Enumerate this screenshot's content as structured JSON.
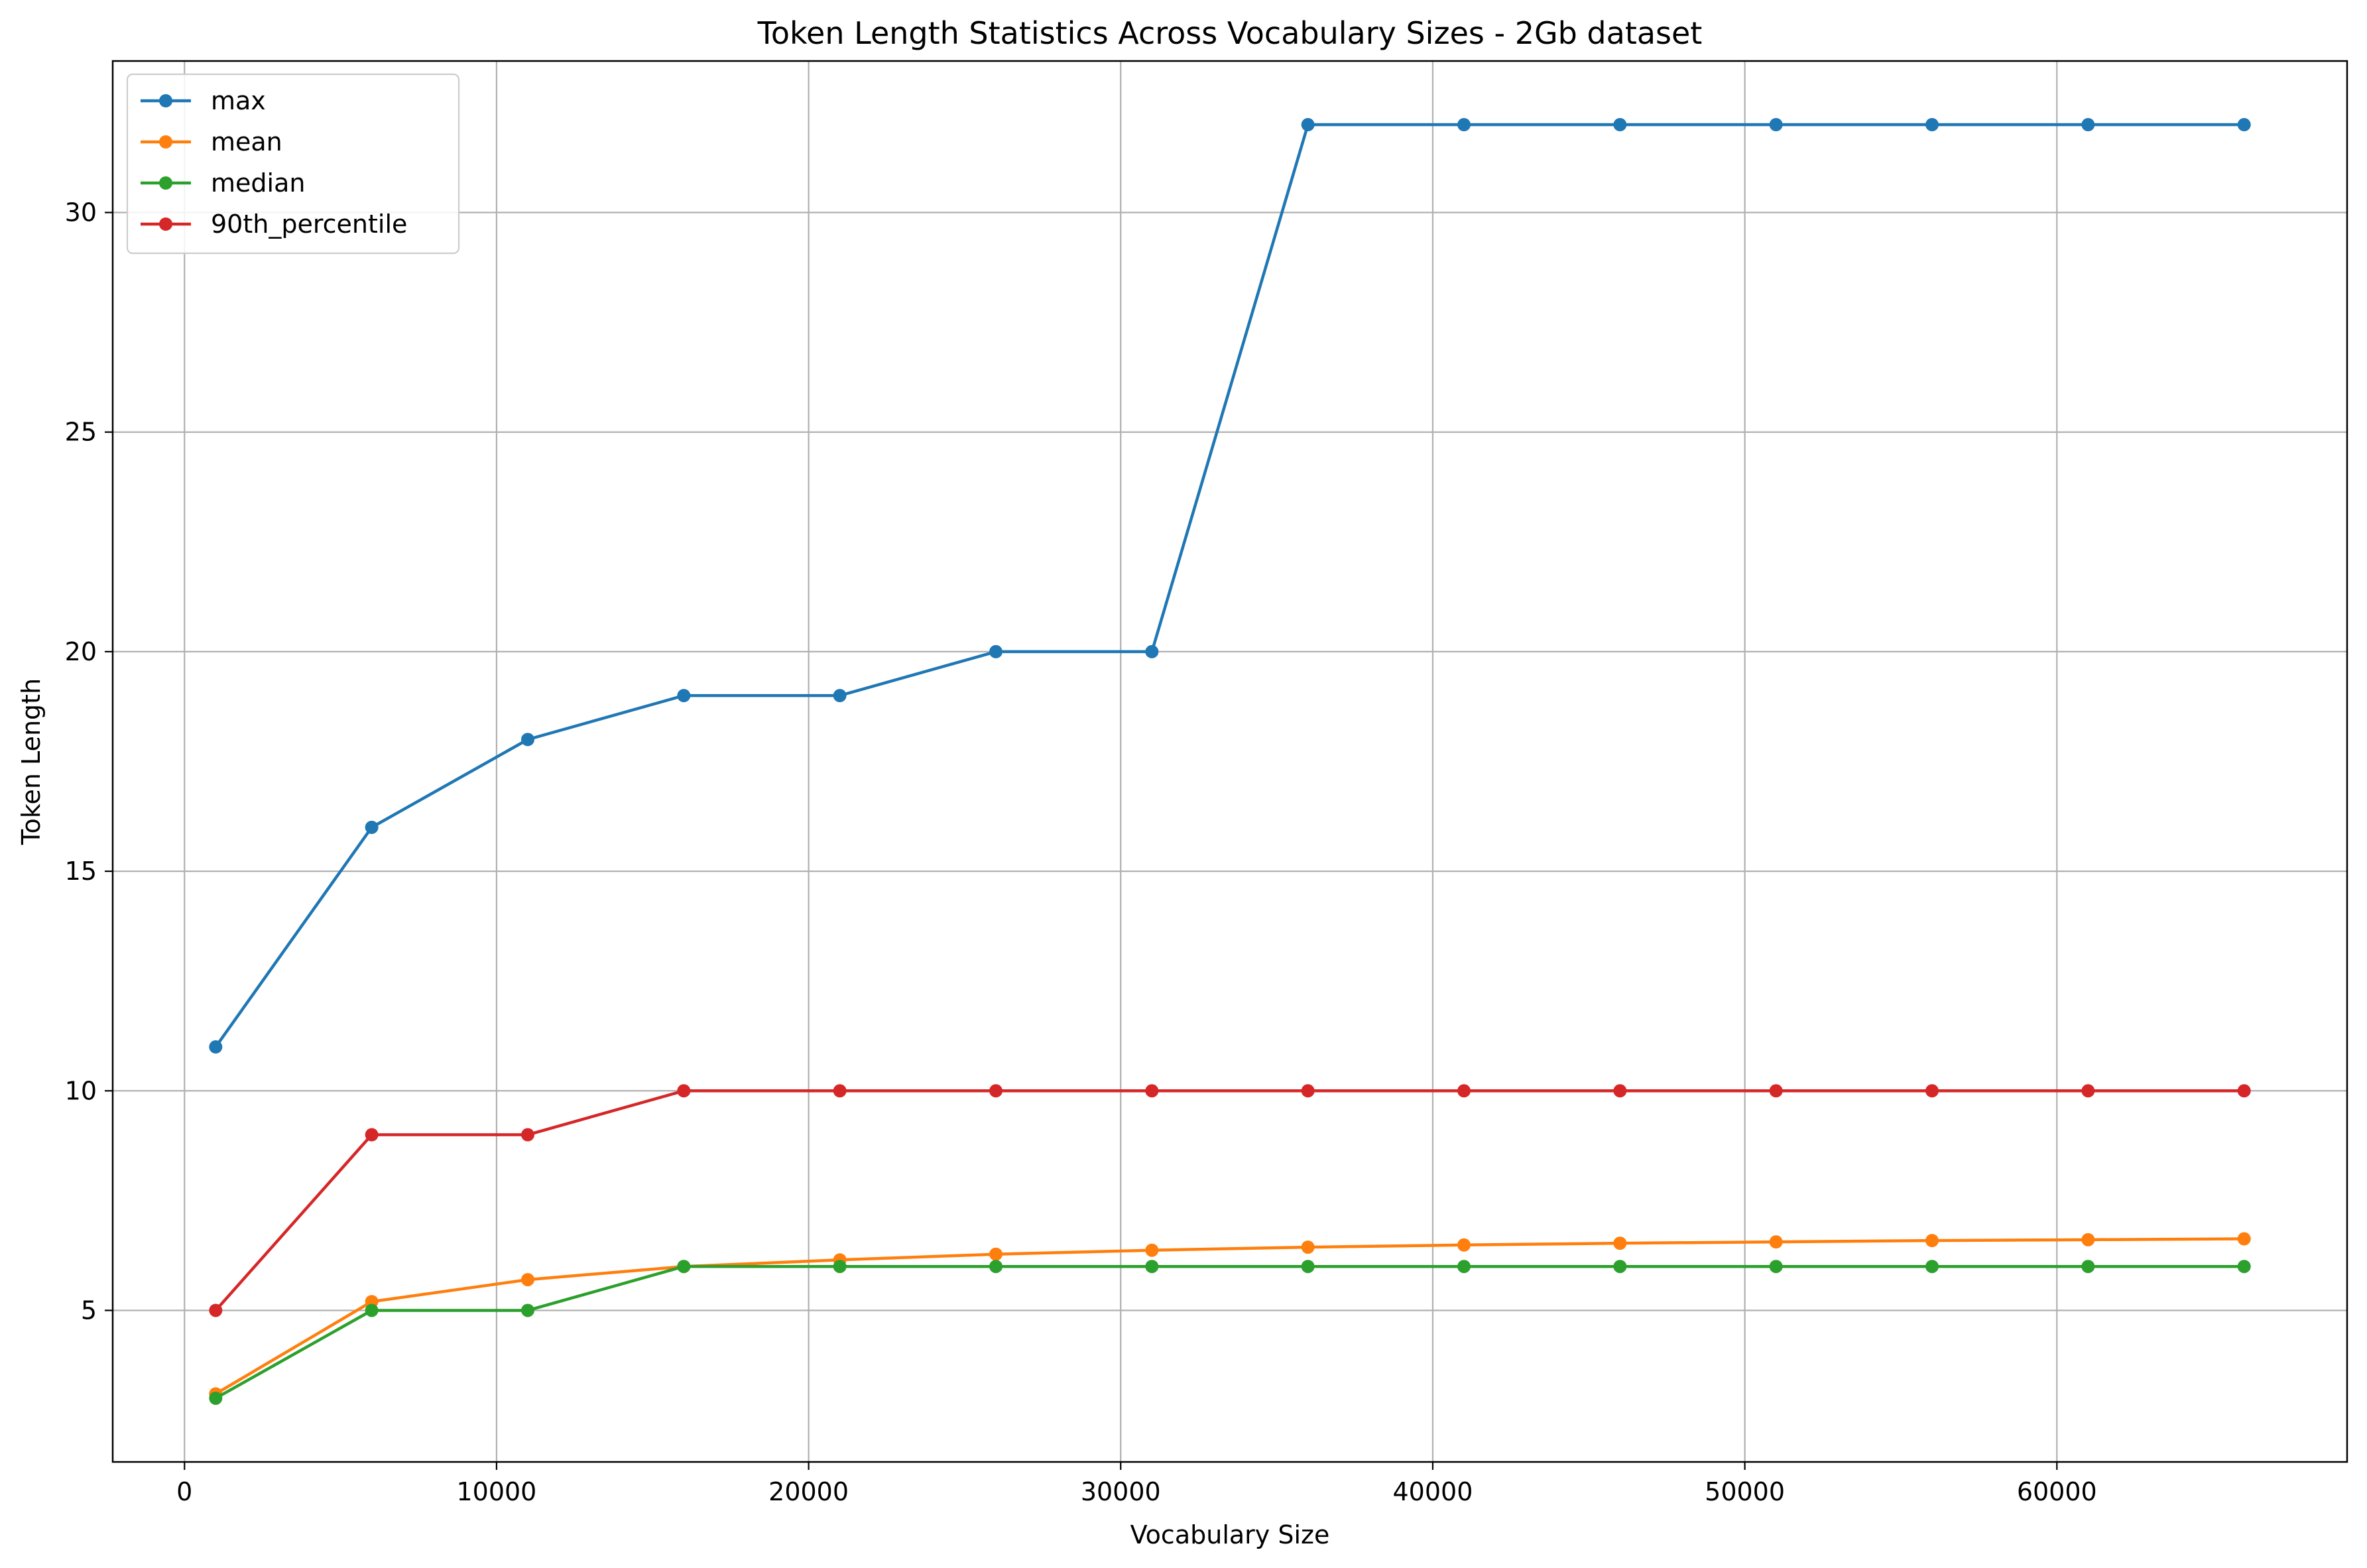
{
  "chart_data": {
    "type": "line",
    "title": "Token Length Statistics Across Vocabulary Sizes - 2Gb dataset",
    "xlabel": "Vocabulary Size",
    "ylabel": "Token Length",
    "x": [
      1000,
      6000,
      11000,
      16000,
      21000,
      26000,
      31000,
      36000,
      41000,
      46000,
      51000,
      56000,
      61000,
      66000
    ],
    "xlim": [
      -2300,
      69300
    ],
    "ylim": [
      1.55,
      33.45
    ],
    "xticks": [
      0,
      10000,
      20000,
      30000,
      40000,
      50000,
      60000
    ],
    "yticks": [
      5,
      10,
      15,
      20,
      25,
      30
    ],
    "grid": true,
    "legend_position": "top-left",
    "series": [
      {
        "name": "max",
        "color": "#1f77b4",
        "values": [
          11,
          16,
          18,
          19,
          19,
          20,
          20,
          32,
          32,
          32,
          32,
          32,
          32,
          32
        ]
      },
      {
        "name": "mean",
        "color": "#ff7f0e",
        "values": [
          3.1,
          5.2,
          5.7,
          6.0,
          6.15,
          6.28,
          6.37,
          6.44,
          6.49,
          6.53,
          6.56,
          6.59,
          6.61,
          6.63
        ]
      },
      {
        "name": "median",
        "color": "#2ca02c",
        "values": [
          3,
          5,
          5,
          6,
          6,
          6,
          6,
          6,
          6,
          6,
          6,
          6,
          6,
          6
        ]
      },
      {
        "name": "90th_percentile",
        "color": "#d62728",
        "values": [
          5,
          9,
          9,
          10,
          10,
          10,
          10,
          10,
          10,
          10,
          10,
          10,
          10,
          10
        ]
      }
    ]
  }
}
